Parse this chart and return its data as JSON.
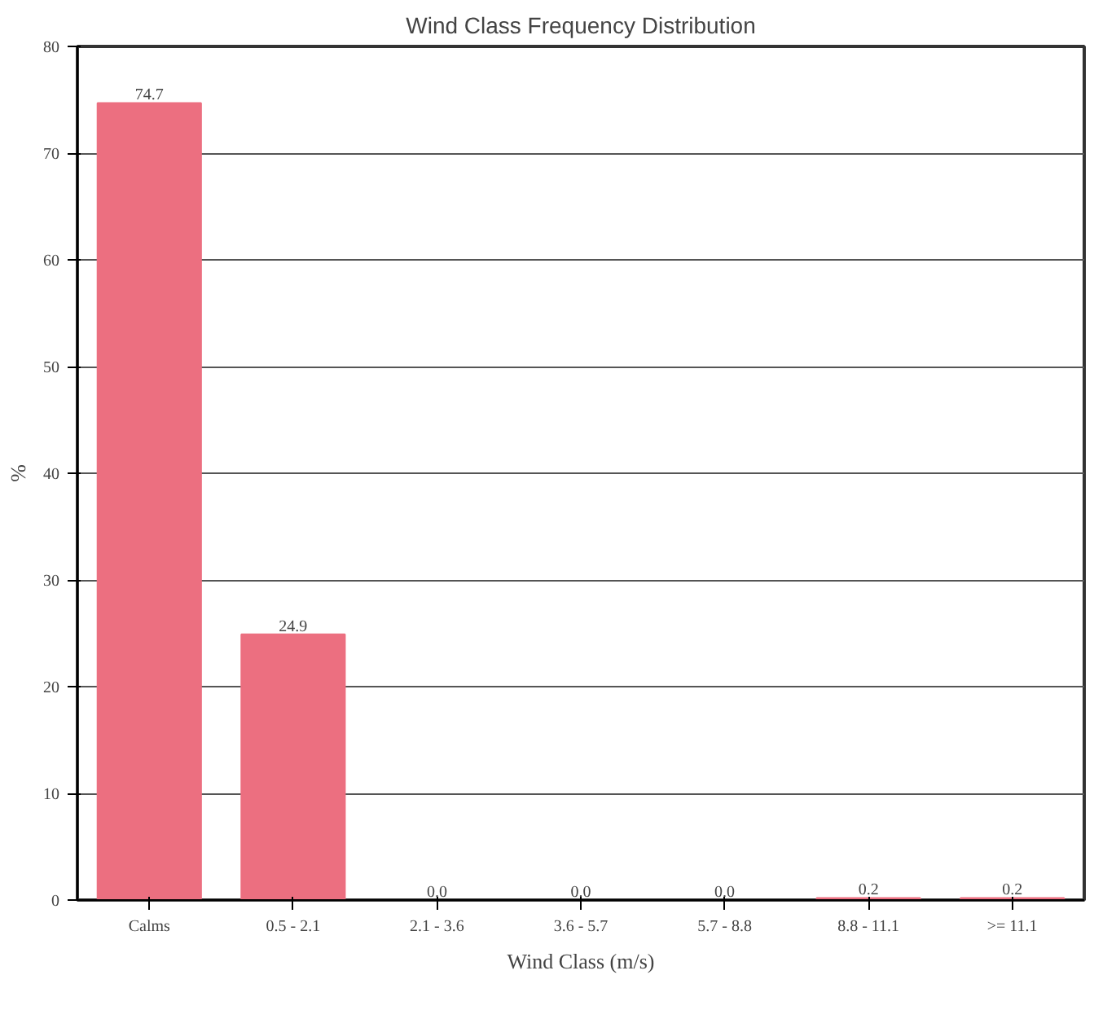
{
  "chart_data": {
    "type": "bar",
    "title": "Wind Class Frequency Distribution",
    "xlabel": "Wind Class (m/s)",
    "ylabel": "%",
    "categories": [
      "Calms",
      "0.5 - 2.1",
      "2.1 - 3.6",
      "3.6 - 5.7",
      "5.7 - 8.8",
      "8.8 - 11.1",
      ">= 11.1"
    ],
    "values": [
      74.7,
      24.9,
      0.0,
      0.0,
      0.0,
      0.2,
      0.2
    ],
    "value_labels": [
      "74.7",
      "24.9",
      "0.0",
      "0.0",
      "0.0",
      "0.2",
      "0.2"
    ],
    "color": "#ec6f80",
    "ylim": [
      0,
      80
    ],
    "yticks": [
      0,
      10,
      20,
      30,
      40,
      50,
      60,
      70,
      80
    ],
    "grid": "y"
  }
}
